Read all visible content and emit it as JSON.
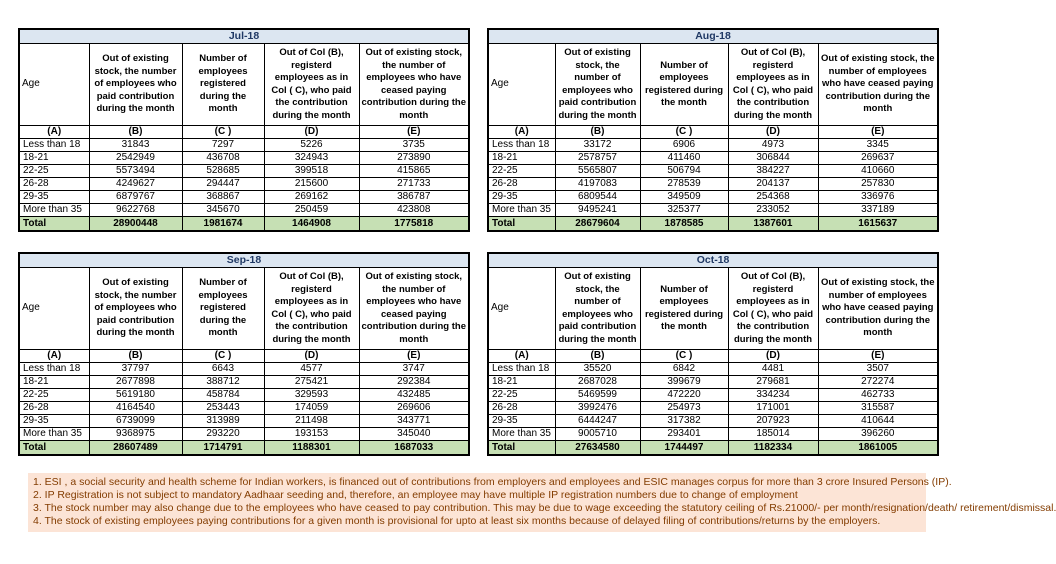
{
  "columns": {
    "age_label": "Age",
    "headers": {
      "col_b": "Out of existing stock, the number of employees who paid contribution during the month",
      "col_c": "Number of employees registered during the month",
      "col_d": "Out of Col (B), registerd employees as in Col ( C), who paid the contribution during the month",
      "col_e": "Out of existing stock, the number of employees who have ceased paying contribution during the month"
    },
    "letters": [
      "(A)",
      "(B)",
      "(C )",
      "(D)",
      "(E)"
    ]
  },
  "tables": [
    {
      "month": "Jul-18",
      "rows": [
        [
          "Less than 18",
          "31843",
          "7297",
          "5226",
          "3735"
        ],
        [
          "18-21",
          "2542949",
          "436708",
          "324943",
          "273890"
        ],
        [
          "22-25",
          "5573494",
          "528685",
          "399518",
          "415865"
        ],
        [
          "26-28",
          "4249627",
          "294447",
          "215600",
          "271733"
        ],
        [
          "29-35",
          "6879767",
          "368867",
          "269162",
          "386787"
        ],
        [
          "More than 35",
          "9622768",
          "345670",
          "250459",
          "423808"
        ]
      ],
      "total": [
        "Total",
        "28900448",
        "1981674",
        "1464908",
        "1775818"
      ]
    },
    {
      "month": "Aug-18",
      "rows": [
        [
          "Less than 18",
          "33172",
          "6906",
          "4973",
          "3345"
        ],
        [
          "18-21",
          "2578757",
          "411460",
          "306844",
          "269637"
        ],
        [
          "22-25",
          "5565807",
          "506794",
          "384227",
          "410660"
        ],
        [
          "26-28",
          "4197083",
          "278539",
          "204137",
          "257830"
        ],
        [
          "29-35",
          "6809544",
          "349509",
          "254368",
          "336976"
        ],
        [
          "More than 35",
          "9495241",
          "325377",
          "233052",
          "337189"
        ]
      ],
      "total": [
        "Total",
        "28679604",
        "1878585",
        "1387601",
        "1615637"
      ]
    },
    {
      "month": "Sep-18",
      "rows": [
        [
          "Less than 18",
          "37797",
          "6643",
          "4577",
          "3747"
        ],
        [
          "18-21",
          "2677898",
          "388712",
          "275421",
          "292384"
        ],
        [
          "22-25",
          "5619180",
          "458784",
          "329593",
          "432485"
        ],
        [
          "26-28",
          "4164540",
          "253443",
          "174059",
          "269606"
        ],
        [
          "29-35",
          "6739099",
          "313989",
          "211498",
          "343771"
        ],
        [
          "More than 35",
          "9368975",
          "293220",
          "193153",
          "345040"
        ]
      ],
      "total": [
        "Total",
        "28607489",
        "1714791",
        "1188301",
        "1687033"
      ]
    },
    {
      "month": "Oct-18",
      "rows": [
        [
          "Less than 18",
          "35520",
          "6842",
          "4481",
          "3507"
        ],
        [
          "18-21",
          "2687028",
          "399679",
          "279681",
          "272274"
        ],
        [
          "22-25",
          "5469599",
          "472220",
          "334234",
          "462733"
        ],
        [
          "26-28",
          "3992476",
          "254973",
          "171001",
          "315587"
        ],
        [
          "29-35",
          "6444247",
          "317382",
          "207923",
          "410644"
        ],
        [
          "More than 35",
          "9005710",
          "293401",
          "185014",
          "396260"
        ]
      ],
      "total": [
        "Total",
        "27634580",
        "1744497",
        "1182334",
        "1861005"
      ]
    }
  ],
  "footnotes": [
    "1. ESI , a social security and health scheme for Indian workers, is financed out of contributions from employers and employees and ESIC manages corpus for more than 3 crore Insured Persons (IP).",
    "2. IP Registration is not subject to mandatory Aadhaar seeding and, therefore, an employee may have multiple IP registration numbers due to change of employment",
    "3. The stock number may also change due to the employees who have ceased to pay contribution. This may be due to wage exceeding the statutory ceiling of Rs.21000/- per month/resignation/death/ retirement/dismissal.",
    "4. The stock of existing employees paying contributions for a given month is provisional for upto at least six months because of delayed filing of contributions/returns by the employers."
  ],
  "colors": {
    "month_band_bg": "#dce6f1",
    "month_band_text": "#1f3864",
    "total_row_bg": "#c6e0b4",
    "footnote_bg": "#fce4d6",
    "footnote_text": "#833c00",
    "border": "#000000"
  }
}
